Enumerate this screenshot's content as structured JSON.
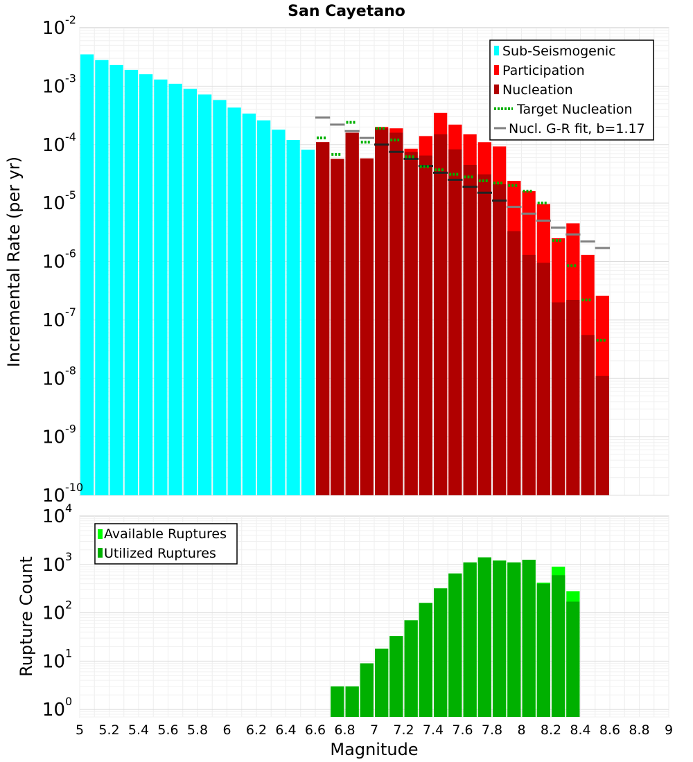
{
  "title": "San Cayetano",
  "x_axis": {
    "label": "Magnitude",
    "range": [
      5,
      9
    ],
    "ticks": [
      "5",
      "5.2",
      "5.4",
      "5.6",
      "5.8",
      "6",
      "6.2",
      "6.4",
      "6.6",
      "6.8",
      "7",
      "7.2",
      "7.4",
      "7.6",
      "7.8",
      "8",
      "8.2",
      "8.4",
      "8.6",
      "8.8",
      "9"
    ]
  },
  "colors": {
    "sub_seismogenic": "#00ffff",
    "participation": "#ff0000",
    "nucleation": "#b00000",
    "target_nucleation": "#00b000",
    "gr_fit": "#808080",
    "available": "#00ff00",
    "utilized": "#00b000"
  },
  "chart_data": [
    {
      "type": "bar",
      "ylabel": "Incremental Rate (per yr)",
      "yscale": "log",
      "ylim": [
        1e-10,
        0.01
      ],
      "y_tick_exponents": [
        -10,
        -9,
        -8,
        -7,
        -6,
        -5,
        -4,
        -3,
        -2
      ],
      "legend_position": "top-right",
      "bin_width": 0.1,
      "series": [
        {
          "name": "Sub-Seismogenic",
          "x": [
            5.05,
            5.15,
            5.25,
            5.35,
            5.45,
            5.55,
            5.65,
            5.75,
            5.85,
            5.95,
            6.05,
            6.15,
            6.25,
            6.35,
            6.45,
            6.55
          ],
          "values": [
            0.0035,
            0.0028,
            0.0023,
            0.0019,
            0.0016,
            0.0013,
            0.0011,
            0.0009,
            0.00072,
            0.00058,
            0.00043,
            0.00034,
            0.00026,
            0.00018,
            0.00012,
            8.2e-05
          ]
        },
        {
          "name": "Participation",
          "x": [
            6.65,
            6.75,
            6.85,
            6.95,
            7.05,
            7.15,
            7.25,
            7.35,
            7.45,
            7.55,
            7.65,
            7.75,
            7.85,
            7.95,
            8.05,
            8.15,
            8.25,
            8.35,
            8.45,
            8.55
          ],
          "values": [
            0.00011,
            5.7e-05,
            0.00016,
            5.8e-05,
            0.0002,
            0.00019,
            8.5e-05,
            0.00014,
            0.00035,
            0.00022,
            0.00015,
            0.00011,
            9.3e-05,
            2.4e-05,
            1.6e-05,
            9.6e-06,
            2.5e-06,
            4.5e-06,
            1.3e-06,
            2.6e-07
          ]
        },
        {
          "name": "Nucleation",
          "x": [
            6.65,
            6.75,
            6.85,
            6.95,
            7.05,
            7.15,
            7.25,
            7.35,
            7.45,
            7.55,
            7.65,
            7.75,
            7.85,
            7.95,
            8.05,
            8.15,
            8.25,
            8.35,
            8.45,
            8.55
          ],
          "values": [
            0.00011,
            5.7e-05,
            0.00016,
            5.8e-05,
            0.00019,
            0.00016,
            7.5e-05,
            6.5e-05,
            0.00015,
            8.3e-05,
            4.5e-05,
            3.1e-05,
            2.1e-05,
            3.3e-06,
            1.3e-06,
            9.5e-07,
            2e-07,
            2.2e-07,
            5.5e-08,
            1.1e-08
          ]
        },
        {
          "name": "Target Nucleation",
          "x": [
            6.65,
            6.75,
            6.85,
            6.95,
            7.05,
            7.15,
            7.25,
            7.35,
            7.45,
            7.55,
            7.65,
            7.75,
            7.85,
            7.95,
            8.05,
            8.15,
            8.25,
            8.35,
            8.45,
            8.55
          ],
          "values": [
            0.00013,
            6.8e-05,
            0.00024,
            0.00011,
            0.00019,
            0.00012,
            6.2e-05,
            4.2e-05,
            3.7e-05,
            3.1e-05,
            2.8e-05,
            2.4e-05,
            2.2e-05,
            2e-05,
            1.6e-05,
            1e-05,
            2.3e-06,
            8.5e-07,
            2.2e-07,
            4.5e-08
          ]
        },
        {
          "name": "Nucl. G-R fit, b=1.17",
          "x": [
            6.65,
            6.75,
            6.85,
            6.95,
            7.05,
            7.15,
            7.25,
            7.35,
            7.45,
            7.55,
            7.65,
            7.75,
            7.85,
            7.95,
            8.05,
            8.15,
            8.25,
            8.35,
            8.45,
            8.55
          ],
          "values": [
            0.00029,
            0.00022,
            0.00017,
            0.00013,
            0.0001,
            7.5e-05,
            5.7e-05,
            4.3e-05,
            3.3e-05,
            2.5e-05,
            1.9e-05,
            1.5e-05,
            1.1e-05,
            8.6e-06,
            6.6e-06,
            5e-06,
            3.8e-06,
            2.9e-06,
            2.2e-06,
            1.7e-06
          ]
        }
      ]
    },
    {
      "type": "bar",
      "ylabel": "Rupture Count",
      "yscale": "log",
      "ylim": [
        0.7,
        10000
      ],
      "y_tick_exponents": [
        0,
        1,
        2,
        3,
        4
      ],
      "legend_position": "top-left",
      "bin_width": 0.1,
      "series": [
        {
          "name": "Available Ruptures",
          "x": [
            6.75,
            6.85,
            6.95,
            7.05,
            7.15,
            7.25,
            7.35,
            7.45,
            7.55,
            7.65,
            7.75,
            7.85,
            7.95,
            8.05,
            8.15,
            8.25,
            8.35
          ],
          "values": [
            3,
            3,
            9,
            18,
            33,
            70,
            160,
            320,
            650,
            1100,
            1400,
            1200,
            1100,
            1250,
            420,
            900,
            280
          ]
        },
        {
          "name": "Utilized Ruptures",
          "x": [
            6.75,
            6.85,
            6.95,
            7.05,
            7.15,
            7.25,
            7.35,
            7.45,
            7.55,
            7.65,
            7.75,
            7.85,
            7.95,
            8.05,
            8.15,
            8.25,
            8.35
          ],
          "values": [
            3,
            3,
            9,
            18,
            33,
            70,
            160,
            320,
            650,
            1100,
            1400,
            1200,
            1100,
            1250,
            400,
            600,
            170
          ]
        }
      ]
    }
  ]
}
